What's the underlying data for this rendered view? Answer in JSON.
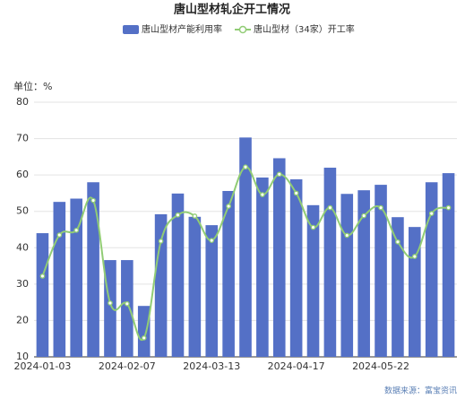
{
  "chart_data": {
    "type": "bar_line",
    "title": "唐山型材轧企开工情况",
    "y_unit_label": "单位：%",
    "source": "数据来源：富宝资讯",
    "categories": [
      "2024-01-03",
      null,
      null,
      null,
      null,
      "2024-02-07",
      null,
      null,
      null,
      null,
      "2024-03-13",
      null,
      null,
      null,
      null,
      "2024-04-17",
      null,
      null,
      null,
      null,
      "2024-05-22",
      null,
      null,
      null,
      null
    ],
    "series": [
      {
        "name": "唐山型材产能利用率",
        "type": "bar",
        "color": "#5470c6",
        "values": [
          44,
          52.6,
          53.5,
          58,
          36.6,
          36.6,
          24,
          49.2,
          54.9,
          48.5,
          46.2,
          55.6,
          70.3,
          59.3,
          64.6,
          58.8,
          51.7,
          62,
          54.8,
          55.8,
          57.3,
          48.4,
          45.7,
          58,
          60.5
        ]
      },
      {
        "name": "唐山型材（34家）开工率",
        "type": "line",
        "color": "#91cc75",
        "values": [
          32.2,
          43.5,
          44.8,
          53,
          24.8,
          24.6,
          15.2,
          41.8,
          49,
          48.7,
          42,
          51.4,
          62.2,
          54.6,
          60.2,
          55,
          45.6,
          51,
          43.4,
          48.8,
          51,
          41.6,
          37.6,
          49.4,
          51
        ]
      }
    ],
    "ylim": [
      10,
      80
    ],
    "yticks": [
      10,
      20,
      30,
      40,
      50,
      60,
      70,
      80
    ],
    "grid": true
  }
}
